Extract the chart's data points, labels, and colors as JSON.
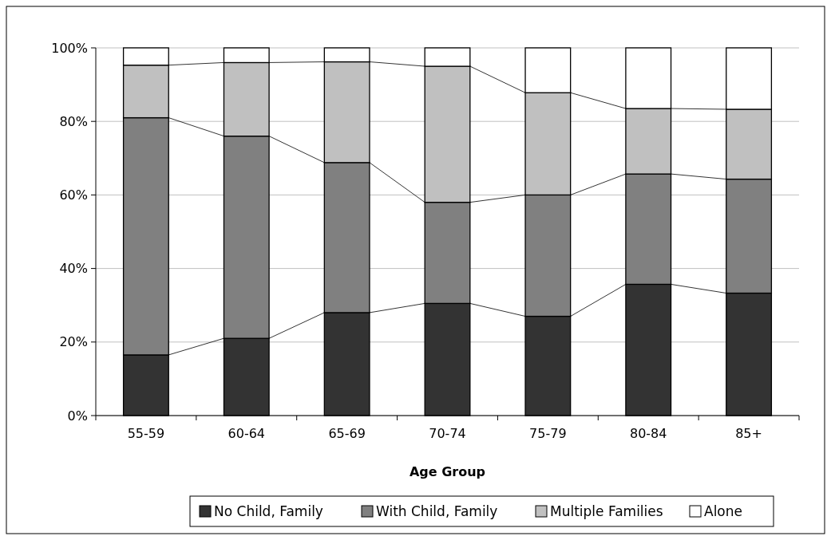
{
  "chart_data": {
    "type": "bar",
    "stacked": true,
    "xlabel": "Age Group",
    "categories": [
      "55-59",
      "60-64",
      "65-69",
      "70-74",
      "75-79",
      "80-84",
      "85+"
    ],
    "series": [
      {
        "name": "No Child, Family",
        "color": "#333333",
        "values": [
          16.5,
          21,
          28,
          30.5,
          27,
          35.7,
          33.3
        ]
      },
      {
        "name": "With Child, Family",
        "color": "#808080",
        "values": [
          64.5,
          55,
          40.8,
          27.5,
          33,
          30,
          31
        ]
      },
      {
        "name": "Multiple Families",
        "color": "#c0c0c0",
        "values": [
          14.3,
          20,
          27.4,
          37,
          27.8,
          17.8,
          19
        ]
      },
      {
        "name": "Alone",
        "color": "#ffffff",
        "values": [
          4.7,
          4,
          3.8,
          5,
          12.2,
          16.5,
          16.7
        ]
      }
    ],
    "ylim": [
      0,
      100
    ],
    "yticks": [
      {
        "value": 0,
        "label": "0%"
      },
      {
        "value": 20,
        "label": "20%"
      },
      {
        "value": 40,
        "label": "40%"
      },
      {
        "value": 60,
        "label": "60%"
      },
      {
        "value": 80,
        "label": "80%"
      },
      {
        "value": 100,
        "label": "100%"
      }
    ],
    "grid": "y",
    "legend": "bottom"
  }
}
